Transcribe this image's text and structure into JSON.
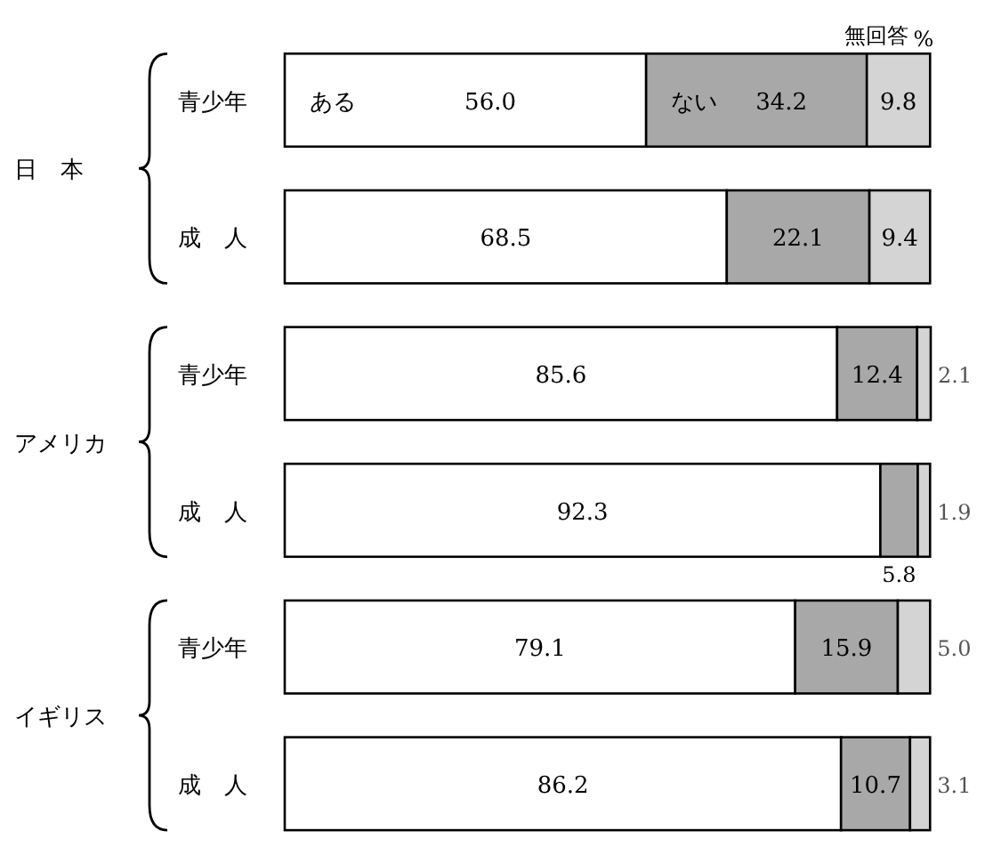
{
  "chart_data": [
    {
      "type": "bar",
      "orientation": "horizontal",
      "stacked": true,
      "title": "日　本",
      "categories": [
        "青少年",
        "成　人"
      ],
      "annotations": [
        "%"
      ],
      "series": [
        {
          "name": "ある",
          "color": "#ffffff",
          "values": [
            56.0,
            68.5
          ],
          "value_labels": [
            "56.0",
            "68.5"
          ]
        },
        {
          "name": "ない",
          "color": "#a8a8a8",
          "values": [
            34.2,
            22.1
          ],
          "value_labels": [
            "34.2",
            "22.1"
          ]
        },
        {
          "name": "無回答",
          "color": "#d4d4d4",
          "values": [
            9.8,
            9.4
          ],
          "value_labels": [
            "9.8",
            "9.4"
          ]
        }
      ]
    },
    {
      "type": "bar",
      "orientation": "horizontal",
      "stacked": true,
      "title": "アメリカ",
      "categories": [
        "青少年",
        "成　人"
      ],
      "series": [
        {
          "color": "#ffffff",
          "values": [
            85.6,
            92.3
          ],
          "value_labels": [
            "85.6",
            "92.3"
          ]
        },
        {
          "color": "#a8a8a8",
          "values": [
            12.4,
            5.8
          ],
          "value_labels": [
            "12.4",
            "5.8"
          ]
        },
        {
          "color": "#d4d4d4",
          "values": [
            2.1,
            1.9
          ],
          "value_labels": [
            "2.1",
            "1.9"
          ]
        }
      ]
    },
    {
      "type": "bar",
      "orientation": "horizontal",
      "stacked": true,
      "title": "イギリス",
      "categories": [
        "青少年",
        "成　人"
      ],
      "series": [
        {
          "color": "#ffffff",
          "values": [
            79.1,
            86.2
          ],
          "value_labels": [
            "79.1",
            "86.2"
          ]
        },
        {
          "color": "#a8a8a8",
          "values": [
            15.9,
            10.7
          ],
          "value_labels": [
            "15.9",
            "10.7"
          ]
        },
        {
          "color": "#d4d4d4",
          "values": [
            5.0,
            3.1
          ],
          "value_labels": [
            "5.0",
            "3.1"
          ]
        }
      ]
    }
  ]
}
